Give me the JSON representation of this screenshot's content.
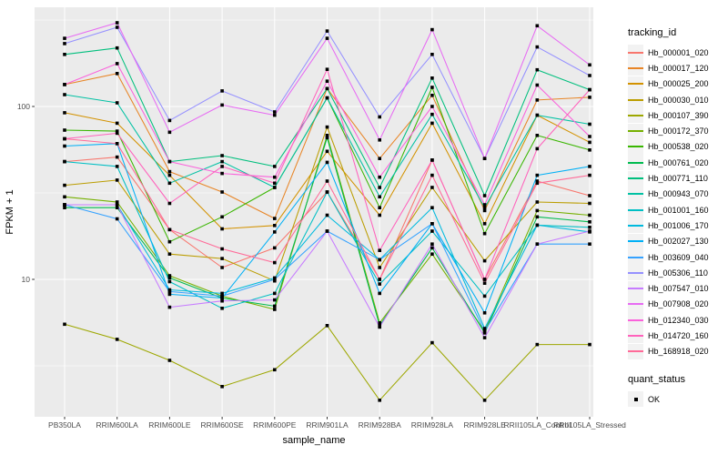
{
  "figure": {
    "colors": {
      "panel_bg": "#EBEBEB",
      "grid": "#FFFFFF",
      "tick_text": "#4D4D4D",
      "axis_title_text": "#000000",
      "legend_key_bg": "#F2F2F2",
      "point": "#000000"
    },
    "legend": {
      "tracking_title": "tracking_id",
      "quant_title": "quant_status",
      "quant_items": [
        {
          "label": "OK",
          "shape": "black-square"
        }
      ]
    }
  },
  "chart_data": {
    "type": "line",
    "title": "",
    "xlabel": "sample_name",
    "ylabel": "FPKM + 1",
    "y_scale": "log10",
    "ylim": [
      1.6,
      380
    ],
    "y_major_ticks": [
      10,
      100
    ],
    "y_tick_labels": [
      "10",
      "100"
    ],
    "y_minor_gridlines": [
      3.162,
      31.62,
      316.2
    ],
    "grid": true,
    "legend_position": "right",
    "point_shape": "filled-square",
    "categories": [
      "PB350LA",
      "RRIM600LA",
      "RRIM600LE",
      "RRIM600SE",
      "RRIM600PE",
      "RRIM901LA",
      "RRIM928BA",
      "RRIM928LA",
      "RRIM928LE",
      "RRII105LA_Control",
      "RRII105LA_Stressed"
    ],
    "series": [
      {
        "name": "Hb_000001_020",
        "color": "#F8766D",
        "values": [
          48,
          51,
          19.4,
          11.7,
          15.2,
          32,
          10,
          49,
          10,
          37,
          30.5
        ]
      },
      {
        "name": "Hb_000017_120",
        "color": "#E88526",
        "values": [
          134,
          155,
          42,
          32,
          22.5,
          127,
          50,
          116,
          25,
          109,
          113
        ]
      },
      {
        "name": "Hb_000025_200",
        "color": "#D39200",
        "values": [
          92,
          80,
          40,
          19.6,
          20.5,
          55,
          23.5,
          80,
          21,
          89,
          62
        ]
      },
      {
        "name": "Hb_000030_010",
        "color": "#BB9D00",
        "values": [
          35,
          37.5,
          14,
          13.2,
          9.8,
          76,
          11.7,
          34,
          12.8,
          28,
          27.5
        ]
      },
      {
        "name": "Hb_000107_390",
        "color": "#9DA700",
        "values": [
          5.5,
          4.5,
          3.4,
          2.4,
          3.0,
          5.4,
          2.0,
          4.3,
          2.0,
          4.2,
          4.2
        ]
      },
      {
        "name": "Hb_000172_370",
        "color": "#75B000",
        "values": [
          30,
          28,
          10.5,
          8.0,
          6.7,
          68,
          5.6,
          14,
          5.0,
          25,
          23.5
        ]
      },
      {
        "name": "Hb_000538_020",
        "color": "#39B600",
        "values": [
          73,
          72,
          16.5,
          23,
          34,
          112,
          26,
          129,
          18.4,
          68,
          56
        ]
      },
      {
        "name": "Hb_000761_020",
        "color": "#00BB4E",
        "values": [
          26,
          26,
          10.2,
          7.8,
          7.0,
          66,
          5.4,
          15.2,
          4.9,
          23,
          21.5
        ]
      },
      {
        "name": "Hb_000771_110",
        "color": "#00BF7D",
        "values": [
          200,
          218,
          48,
          52,
          45,
          127,
          34,
          146,
          30.5,
          163,
          125
        ]
      },
      {
        "name": "Hb_000943_070",
        "color": "#00C1A3",
        "values": [
          117,
          105,
          36,
          48,
          34,
          112,
          30,
          90,
          26,
          89,
          79
        ]
      },
      {
        "name": "Hb_001001_160",
        "color": "#00BFC4",
        "values": [
          48,
          45,
          9.7,
          6.8,
          8.3,
          32,
          9.4,
          19,
          8.0,
          20.6,
          20
        ]
      },
      {
        "name": "Hb_001006_170",
        "color": "#00BADE",
        "values": [
          27,
          27,
          8.7,
          8.3,
          10.2,
          23.5,
          13,
          26,
          5.2,
          20.6,
          18.8
        ]
      },
      {
        "name": "Hb_002027_130",
        "color": "#00B0F6",
        "values": [
          59,
          61,
          8.2,
          7.8,
          18.8,
          47.5,
          8.3,
          21,
          6.4,
          40,
          45
        ]
      },
      {
        "name": "Hb_003609_040",
        "color": "#35A2FF",
        "values": [
          27,
          22.4,
          8.5,
          8.0,
          10,
          19,
          13,
          21,
          5.0,
          16,
          16
        ]
      },
      {
        "name": "Hb_005306_110",
        "color": "#9590FF",
        "values": [
          231,
          287,
          83,
          123,
          93,
          273,
          87,
          200,
          50,
          221,
          151
        ]
      },
      {
        "name": "Hb_007547_010",
        "color": "#C77CFF",
        "values": [
          27,
          27,
          6.9,
          7.5,
          7.6,
          19,
          5.3,
          16,
          4.6,
          16,
          19
        ]
      },
      {
        "name": "Hb_007908_020",
        "color": "#E76BF3",
        "values": [
          248,
          305,
          71,
          102,
          89,
          248,
          64,
          278,
          50,
          293,
          174
        ]
      },
      {
        "name": "Hb_012340_030",
        "color": "#FA62DB",
        "values": [
          134,
          177,
          48,
          41,
          39,
          140,
          39,
          100,
          27,
          133,
          67
        ]
      },
      {
        "name": "Hb_014720_160",
        "color": "#FF62BC",
        "values": [
          65,
          70,
          27.5,
          45,
          36,
          164,
          14.7,
          49,
          10,
          57,
          125
        ]
      },
      {
        "name": "Hb_168918_020",
        "color": "#FF6A98",
        "values": [
          65,
          61,
          19.4,
          15,
          12.5,
          37,
          10,
          40,
          9.5,
          36,
          40
        ]
      }
    ]
  }
}
